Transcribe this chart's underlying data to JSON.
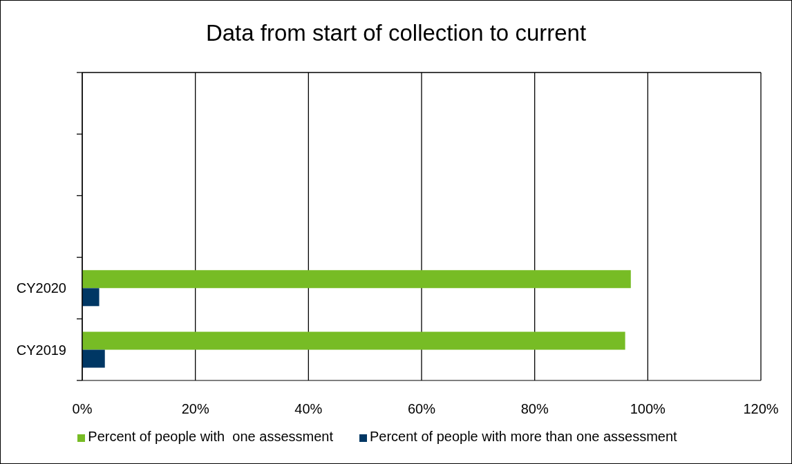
{
  "chart_data": {
    "type": "bar",
    "orientation": "horizontal",
    "title": "Data from start of collection to current",
    "categories": [
      null,
      null,
      null,
      "CY2020",
      "CY2019"
    ],
    "series": [
      {
        "name": "Percent of people with  one assessment",
        "color": "#77bc25",
        "values": [
          null,
          null,
          null,
          97,
          96
        ]
      },
      {
        "name": "Percent of people with more than one assessment",
        "color": "#003764",
        "values": [
          null,
          null,
          null,
          3,
          4
        ]
      }
    ],
    "xlim": [
      0,
      120
    ],
    "xticks": [
      {
        "value": 0,
        "label": "0%"
      },
      {
        "value": 20,
        "label": "20%"
      },
      {
        "value": 40,
        "label": "40%"
      },
      {
        "value": 60,
        "label": "60%"
      },
      {
        "value": 80,
        "label": "80%"
      },
      {
        "value": 100,
        "label": "100%"
      },
      {
        "value": 120,
        "label": "120%"
      }
    ],
    "grid": "x",
    "legend": "bottom"
  }
}
